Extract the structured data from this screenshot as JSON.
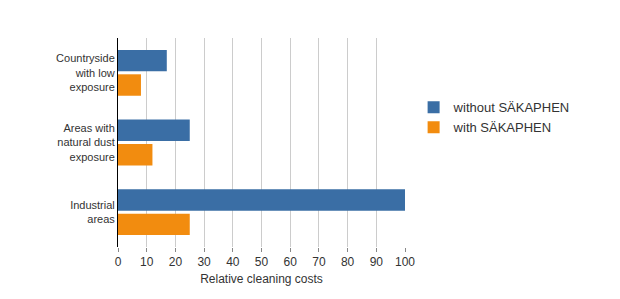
{
  "chart_data": {
    "type": "bar",
    "orientation": "horizontal",
    "categories": [
      "Countryside with low exposure",
      "Areas with natural dust exposure",
      "Industrial areas"
    ],
    "series": [
      {
        "name": "without SÄKAPHEN",
        "color": "#3a6ea5",
        "values": [
          17,
          25,
          100
        ]
      },
      {
        "name": "with SÄKAPHEN",
        "color": "#f28c0f",
        "values": [
          8,
          12,
          25
        ]
      }
    ],
    "xlabel": "Relative cleaning costs",
    "xlim": [
      0,
      100
    ],
    "xticks": [
      0,
      10,
      20,
      30,
      40,
      50,
      60,
      70,
      80,
      90,
      100
    ],
    "grid": true,
    "legend": "right"
  }
}
